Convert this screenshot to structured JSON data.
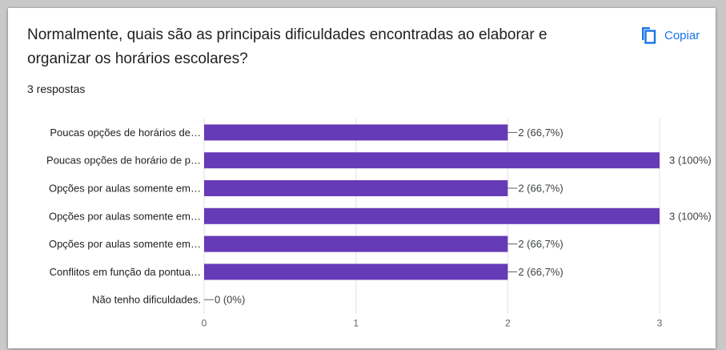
{
  "card": {
    "question": "Normalmente, quais são as principais dificuldades encontradas ao elaborar e organizar os horários escolares?",
    "responses": "3 respostas",
    "copy_label": "Copiar",
    "copy_icon": "copy-icon"
  },
  "colors": {
    "bar": "#673ab7",
    "accent": "#1a73e8",
    "grid": "#e0e0e0",
    "text": "#202124",
    "label": "#3c4043"
  },
  "chart_data": {
    "type": "bar",
    "orientation": "horizontal",
    "categories": [
      "Poucas opções de horários de…",
      "Poucas opções de horário de p…",
      "Opções por aulas somente em…",
      "Opções por aulas somente em…",
      "Opções por aulas somente em…",
      "Conflitos em função da pontua…",
      "Não tenho dificuldades."
    ],
    "values": [
      2,
      3,
      2,
      3,
      2,
      2,
      0
    ],
    "data_labels": [
      "2 (66,7%)",
      "3 (100%)",
      "2 (66,7%)",
      "3 (100%)",
      "2 (66,7%)",
      "2 (66,7%)",
      "0 (0%)"
    ],
    "xticks": [
      "0",
      "1",
      "2",
      "3"
    ],
    "xlim": [
      0,
      3
    ],
    "grid": true,
    "title": "",
    "xlabel": "",
    "ylabel": ""
  }
}
